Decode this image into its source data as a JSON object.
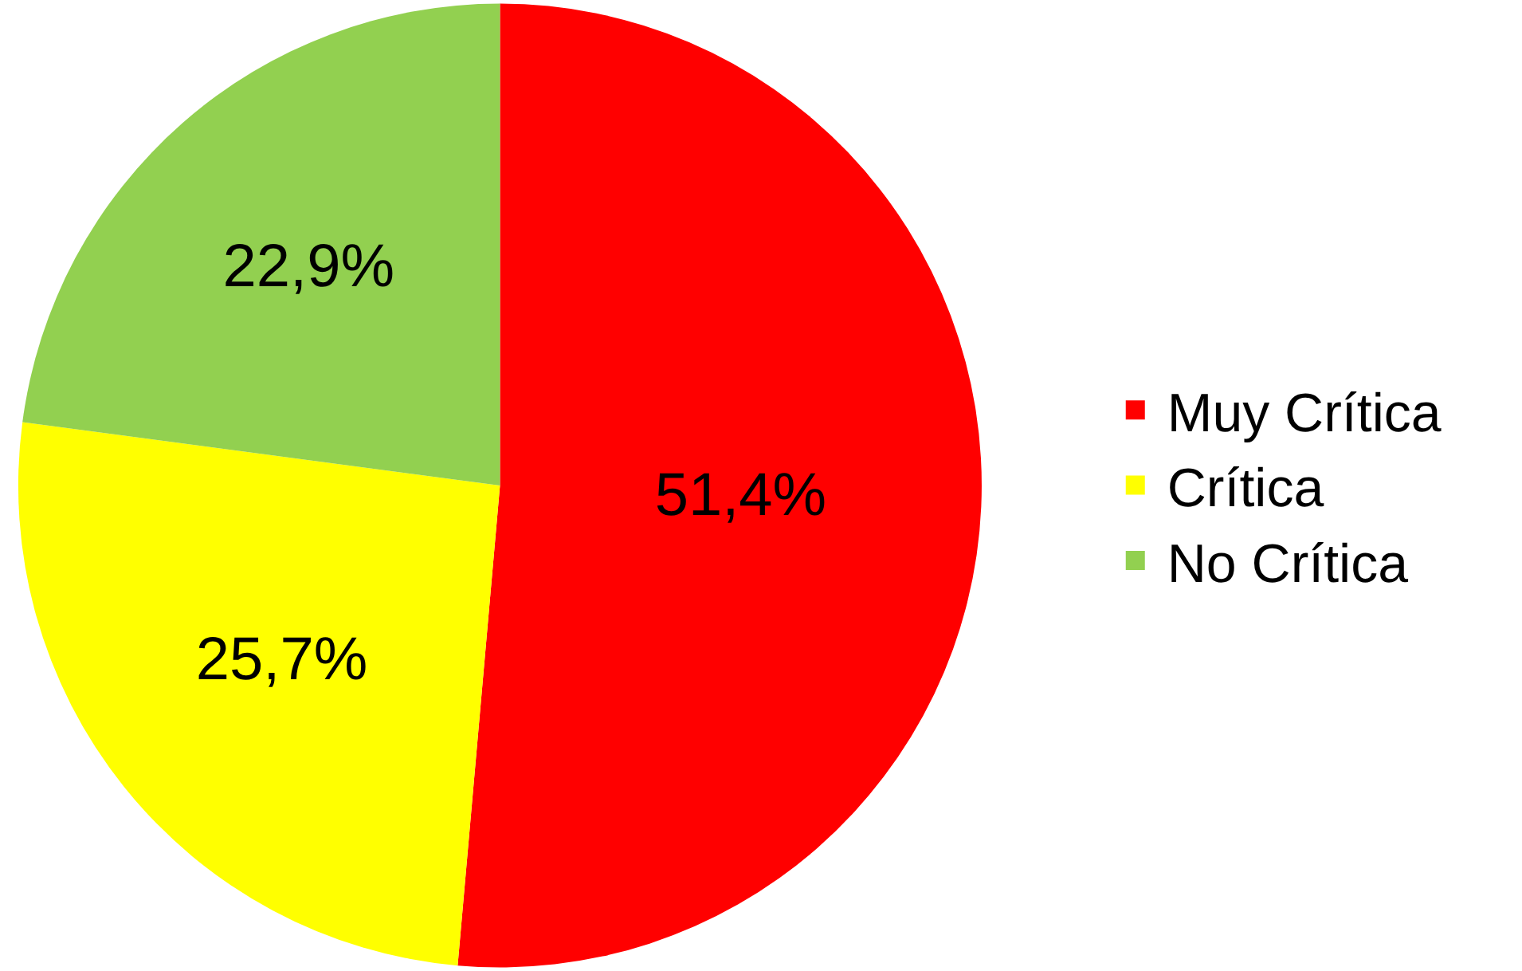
{
  "chart_data": {
    "type": "pie",
    "categories": [
      "Muy Crítica",
      "Crítica",
      "No Crítica"
    ],
    "values": [
      51.4,
      25.7,
      22.9
    ],
    "colors": [
      "#ff0000",
      "#ffff00",
      "#92d050"
    ],
    "value_labels": [
      "51,4%",
      "25,7%",
      "22,9%"
    ],
    "legend": "right"
  }
}
